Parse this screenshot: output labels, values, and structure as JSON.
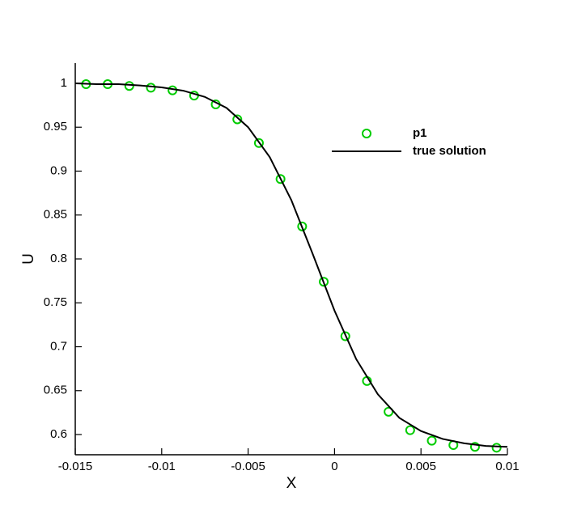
{
  "chart_data": {
    "type": "line",
    "xlabel": "X",
    "ylabel": "U",
    "xlim": [
      -0.015,
      0.01
    ],
    "xticks": [
      -0.015,
      -0.01,
      -0.005,
      0,
      0.005,
      0.01
    ],
    "ylim": [
      0.577,
      1.023
    ],
    "yticks": [
      0.6,
      0.65,
      0.7,
      0.75,
      0.8,
      0.85,
      0.9,
      0.95,
      1
    ],
    "grid": false,
    "legend": "upper right",
    "series": [
      {
        "name": "p1",
        "type": "scatter",
        "color": "#00cc00",
        "x": [
          -0.014375,
          -0.013125,
          -0.011875,
          -0.010625,
          -0.009375,
          -0.008125,
          -0.006875,
          -0.005625,
          -0.004375,
          -0.003125,
          -0.001875,
          -0.000625,
          0.000625,
          0.001875,
          0.003125,
          0.004375,
          0.005625,
          0.006875,
          0.008125,
          0.009375
        ],
        "values": [
          0.999,
          0.999,
          0.997,
          0.995,
          0.992,
          0.986,
          0.976,
          0.959,
          0.932,
          0.891,
          0.837,
          0.774,
          0.712,
          0.661,
          0.626,
          0.605,
          0.593,
          0.588,
          0.586,
          0.585
        ]
      },
      {
        "name": "true solution",
        "type": "line",
        "color": "#000000",
        "x": [
          -0.015,
          -0.01375,
          -0.0125,
          -0.01125,
          -0.01,
          -0.00875,
          -0.0075,
          -0.00625,
          -0.005,
          -0.00375,
          -0.0025,
          -0.00125,
          0,
          0.00125,
          0.0025,
          0.00375,
          0.005,
          0.00625,
          0.0075,
          0.00875,
          0.01
        ],
        "values": [
          1.0,
          0.999,
          0.999,
          0.9975,
          0.9954,
          0.9916,
          0.9845,
          0.972,
          0.95,
          0.916,
          0.867,
          0.805,
          0.741,
          0.686,
          0.646,
          0.619,
          0.604,
          0.595,
          0.59,
          0.587,
          0.586
        ]
      }
    ]
  }
}
